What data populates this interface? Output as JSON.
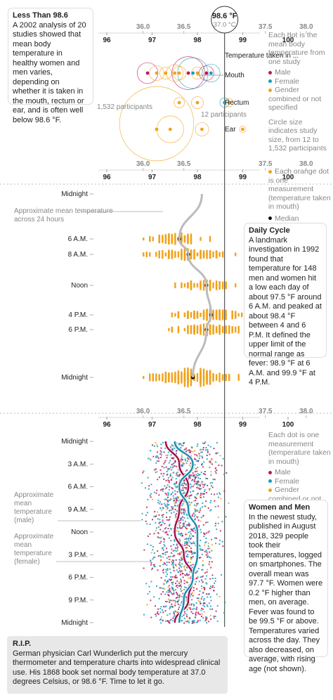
{
  "colors": {
    "male": "#c0175a",
    "female": "#1b9bbd",
    "gender": "#f0a21c",
    "median": "#111111",
    "line": "#bbbbbb",
    "curve_male": "#a3124d",
    "curve_female": "#1b8fb0"
  },
  "ref": {
    "f": "98.6 °F",
    "c": "37.0 °C"
  },
  "axis": {
    "f_ticks": [
      "96",
      "97",
      "98",
      "99",
      "100"
    ],
    "c_ticks": [
      "36.0",
      "36.5",
      "37.5",
      "38.0"
    ]
  },
  "intro": {
    "title": "Less Than 98.6",
    "body": "A 2002 analysis of 20 studies showed that mean body temperature in healthy women and men varies, depending on whether it is taken in the mouth, rectum or ear, and is often well below 98.6 °F."
  },
  "legend1": {
    "head": "Each dot is the mean body temperature from one study",
    "male": "Male",
    "female": "Female",
    "gender": "Gender combined or not specified",
    "size": "Circle size indicates study size, from 12 to 1,532 participants"
  },
  "panel1": {
    "taken": "Temperature taken in ...",
    "mouth": "Mouth",
    "rectum": "Rectum",
    "ear": "Ear",
    "p1532": "1,532 participants",
    "p12": "12 participants"
  },
  "legend2": {
    "dot": "Each orange dot is one measurement (temperature taken in mouth)",
    "median": "Median"
  },
  "panel2": {
    "mean_label": "Approximate mean temperature across 24 hours",
    "rows": [
      "Midnight",
      "6 A.M.",
      "8 A.M.",
      "Noon",
      "4 P.M.",
      "6 P.M.",
      "Midnight"
    ]
  },
  "daily": {
    "title": "Daily Cycle",
    "body": "A landmark investigation in 1992 found that temperature for 148 men and women hit a low each day of about 97.5 °F around 6 A.M. and peaked at about 98.4 °F between 4 and 6 P.M. It defined the upper limit of the normal range as fever: 98.9 °F at 6 A.M. and 99.9 °F at 4 P.M."
  },
  "legend3": {
    "head": "Each dot is one measurement (temperature taken in mouth)",
    "male": "Male",
    "female": "Female",
    "gender": "Gender combined or not specified"
  },
  "panel3": {
    "male_label": "Approximate mean temperature (male)",
    "female_label": "Approximate mean temperature (female)",
    "rows": [
      "Midnight",
      "3 A.M.",
      "6 A.M.",
      "9 A.M.",
      "Noon",
      "3 P.M.",
      "6 P.M.",
      "9 P.M.",
      "Midnight"
    ]
  },
  "women": {
    "title": "Women and Men",
    "body": "In the newest study, published in August 2018, 329 people took their temperatures, logged on smartphones. The overall mean was 97.7 °F. Women were 0.2 °F higher than men, on average. Fever was found to be 99.5 °F or above. Temperatures varied across the day. They also decreased, on average, with rising age (not shown)."
  },
  "rip": {
    "title": "R.I.P.",
    "body": "German physician Carl Wunderlich put the mercury thermometer and temperature charts into widespread clinical use. His 1868 book set normal body temperature at 37.0 degrees Celsius, or 98.6 °F. Time to let it go."
  },
  "chart_data": [
    {
      "type": "scatter",
      "panel": "studies",
      "x_unit": "°F",
      "xlim": [
        95.5,
        100.8
      ],
      "series": [
        {
          "name": "Mouth",
          "values": [
            {
              "x": 96.9,
              "g": "male",
              "n": 120
            },
            {
              "x": 97.1,
              "g": "gender",
              "n": 60
            },
            {
              "x": 97.3,
              "g": "gender",
              "n": 40
            },
            {
              "x": 97.5,
              "g": "gender",
              "n": 80
            },
            {
              "x": 97.6,
              "g": "gender",
              "n": 50
            },
            {
              "x": 97.8,
              "g": "male",
              "n": 300
            },
            {
              "x": 97.9,
              "g": "female",
              "n": 260
            },
            {
              "x": 98.0,
              "g": "gender",
              "n": 40
            },
            {
              "x": 98.2,
              "g": "male",
              "n": 60
            },
            {
              "x": 98.3,
              "g": "female",
              "n": 90
            }
          ]
        },
        {
          "name": "Rectum",
          "values": [
            {
              "x": 97.6,
              "g": "gender",
              "n": 30
            },
            {
              "x": 98.0,
              "g": "gender",
              "n": 40
            },
            {
              "x": 98.6,
              "g": "female",
              "n": 25
            },
            {
              "x": 98.7,
              "g": "gender",
              "n": 20
            }
          ]
        },
        {
          "name": "Ear",
          "values": [
            {
              "x": 97.1,
              "g": "gender",
              "n": 1532
            },
            {
              "x": 97.4,
              "g": "gender",
              "n": 200
            },
            {
              "x": 98.1,
              "g": "gender",
              "n": 50
            },
            {
              "x": 99.0,
              "g": "gender",
              "n": 12
            }
          ]
        }
      ]
    },
    {
      "type": "scatter",
      "panel": "daily cycle",
      "x_unit": "°F",
      "rows": [
        "6 A.M.",
        "8 A.M.",
        "Noon",
        "4 P.M.",
        "6 P.M.",
        "Midnight"
      ],
      "median": [
        97.6,
        97.8,
        98.2,
        98.3,
        98.2,
        97.9
      ]
    },
    {
      "type": "scatter",
      "panel": "women and men",
      "x_unit": "°F",
      "rows": [
        "Midnight",
        "3 A.M.",
        "6 A.M.",
        "9 A.M.",
        "Noon",
        "3 P.M.",
        "6 P.M.",
        "9 P.M.",
        "Midnight"
      ],
      "series": [
        {
          "name": "Male",
          "mean": [
            97.3,
            97.6,
            97.8,
            97.6,
            97.5,
            97.7,
            97.9,
            97.8,
            97.5
          ]
        },
        {
          "name": "Female",
          "mean": [
            97.5,
            97.9,
            97.6,
            97.8,
            98.0,
            98.0,
            97.9,
            97.7,
            97.6
          ]
        }
      ]
    }
  ]
}
